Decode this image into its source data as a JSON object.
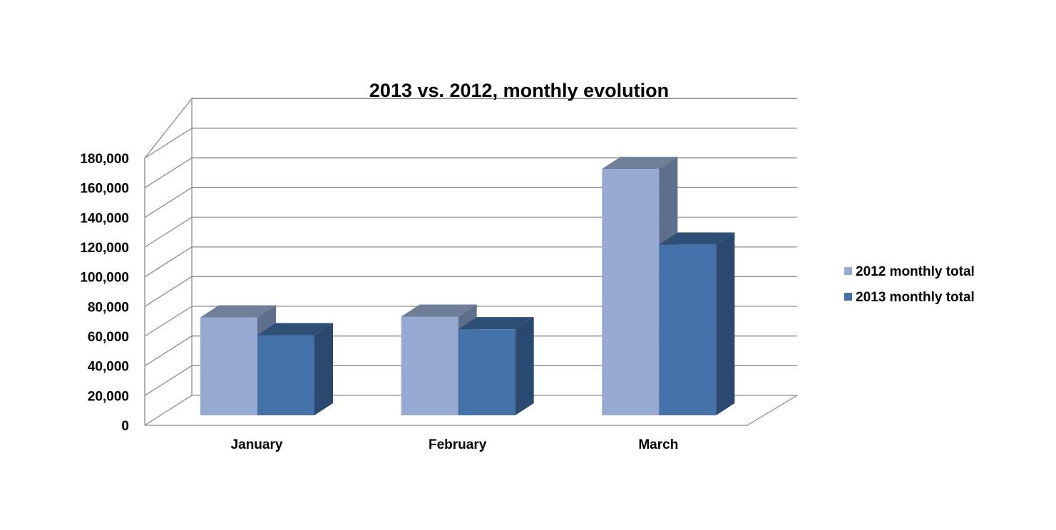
{
  "chart_data": {
    "type": "bar",
    "title": "2013 vs. 2012, monthly evolution",
    "categories": [
      "January",
      "February",
      "March"
    ],
    "series": [
      {
        "name": "2012 monthly total",
        "values": [
          66000,
          66500,
          166000
        ],
        "color": "#95A9D1",
        "top_color": "#6F7F98",
        "side_color": "#5E6E8C"
      },
      {
        "name": "2013 monthly total",
        "values": [
          54000,
          58000,
          115000
        ],
        "color": "#4371A8",
        "top_color": "#2E4F76",
        "side_color": "#2B4870"
      }
    ],
    "y_ticks": [
      "0",
      "20,000",
      "40,000",
      "60,000",
      "80,000",
      "100,000",
      "120,000",
      "140,000",
      "160,000",
      "180,000"
    ],
    "ylim": [
      0,
      180000
    ],
    "xlabel": "",
    "ylabel": "",
    "grid": true,
    "legend_position": "right",
    "style": "3d-clustered-column"
  }
}
